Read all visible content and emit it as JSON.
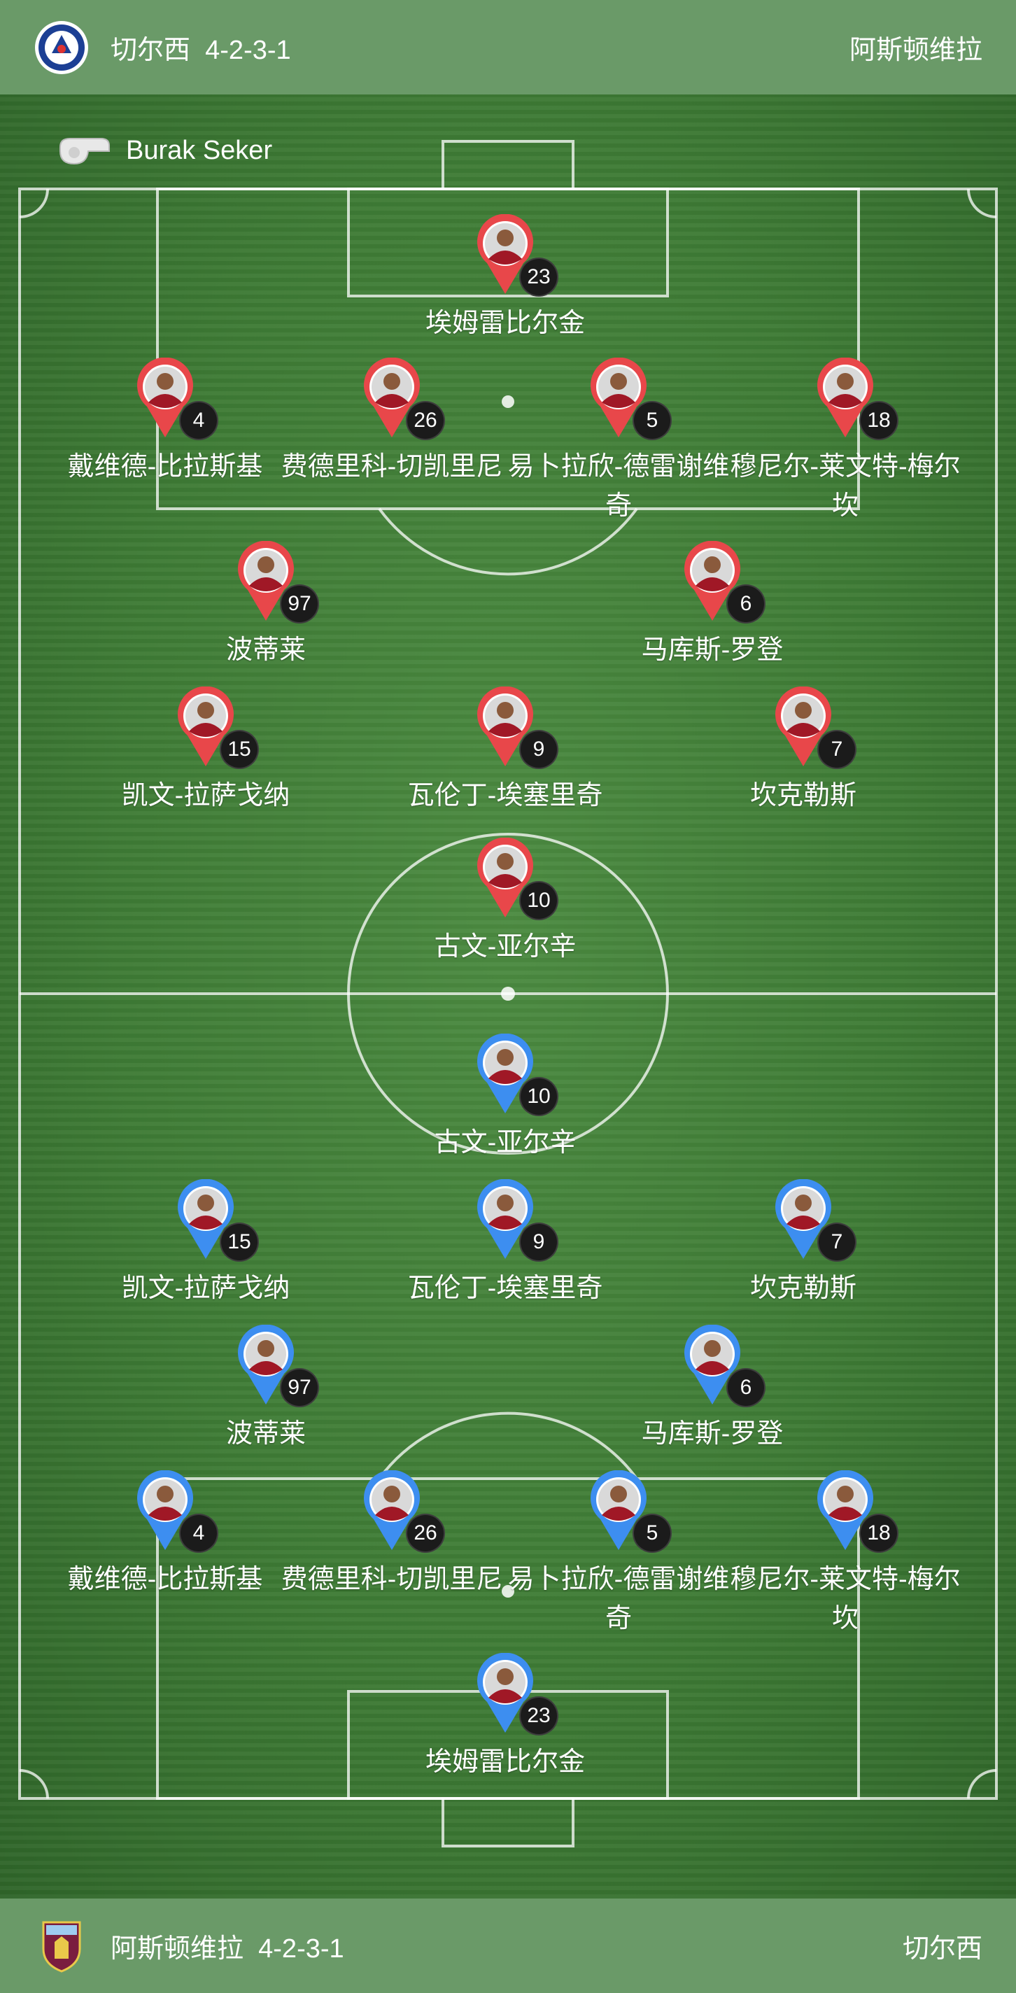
{
  "top_bar": {
    "team": "切尔西",
    "formation": "4-2-3-1",
    "opponent": "阿斯顿维拉",
    "crest_icon": "chelsea-crest-icon"
  },
  "bottom_bar": {
    "team": "阿斯顿维拉",
    "formation": "4-2-3-1",
    "opponent": "切尔西",
    "crest_icon": "aston-villa-crest-icon"
  },
  "referee": {
    "name": "Burak Seker",
    "icon": "whistle-icon"
  },
  "colors": {
    "home_pin": "#e8474a",
    "away_pin": "#3d8ef0",
    "bar": "#6a9a68"
  },
  "home_players": [
    {
      "number": "23",
      "name": "埃姆雷比尔金"
    },
    {
      "number": "4",
      "name": "戴维德-比拉斯基"
    },
    {
      "number": "26",
      "name": "费德里科-切凯里尼"
    },
    {
      "number": "5",
      "name": "易卜拉欣-德雷谢维奇"
    },
    {
      "number": "18",
      "name": "穆尼尔-莱文特-梅尔坎"
    },
    {
      "number": "97",
      "name": "波蒂莱"
    },
    {
      "number": "6",
      "name": "马库斯-罗登"
    },
    {
      "number": "15",
      "name": "凯文-拉萨戈纳"
    },
    {
      "number": "9",
      "name": "瓦伦丁-埃塞里奇"
    },
    {
      "number": "7",
      "name": "坎克勒斯"
    },
    {
      "number": "10",
      "name": "古文-亚尔辛"
    }
  ],
  "away_players": [
    {
      "number": "10",
      "name": "古文-亚尔辛"
    },
    {
      "number": "15",
      "name": "凯文-拉萨戈纳"
    },
    {
      "number": "9",
      "name": "瓦伦丁-埃塞里奇"
    },
    {
      "number": "7",
      "name": "坎克勒斯"
    },
    {
      "number": "97",
      "name": "波蒂莱"
    },
    {
      "number": "6",
      "name": "马库斯-罗登"
    },
    {
      "number": "4",
      "name": "戴维德-比拉斯基"
    },
    {
      "number": "26",
      "name": "费德里科-切凯里尼"
    },
    {
      "number": "5",
      "name": "易卜拉欣-德雷谢维奇"
    },
    {
      "number": "18",
      "name": "穆尼尔-莱文特-梅尔坎"
    },
    {
      "number": "23",
      "name": "埃姆雷比尔金"
    }
  ]
}
